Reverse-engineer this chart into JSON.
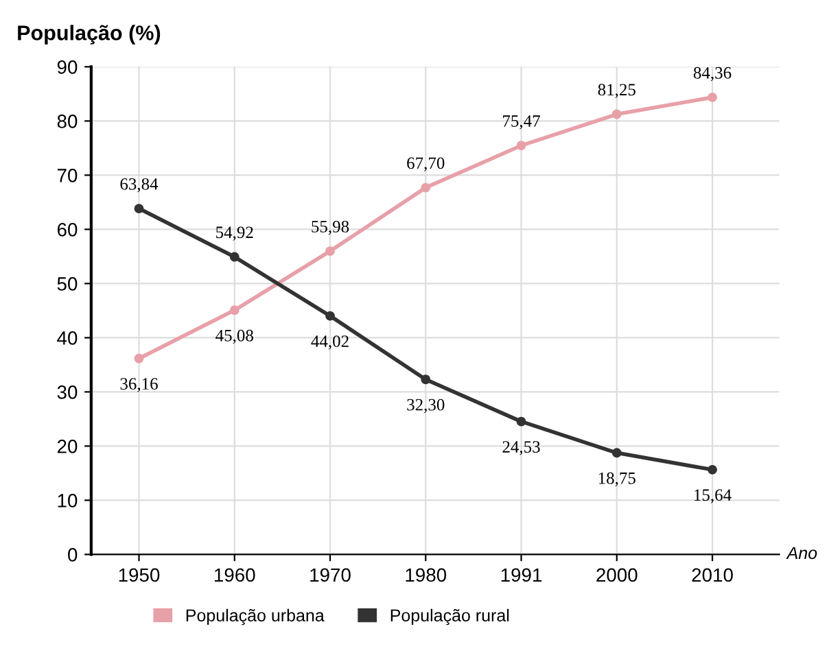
{
  "chart_data": {
    "type": "line",
    "ylabel": "População (%)",
    "xlabel": "Ano",
    "categories": [
      "1950",
      "1960",
      "1970",
      "1980",
      "1991",
      "2000",
      "2010"
    ],
    "series": [
      {
        "name": "População urbana",
        "color": "#e8a0a8",
        "values": [
          36.16,
          45.08,
          55.98,
          67.7,
          75.47,
          81.25,
          84.36
        ],
        "value_labels": [
          "36,16",
          "45,08",
          "55,98",
          "67,70",
          "75,47",
          "81,25",
          "84,36"
        ]
      },
      {
        "name": "População rural",
        "color": "#333333",
        "values": [
          63.84,
          54.92,
          44.02,
          32.3,
          24.53,
          18.75,
          15.64
        ],
        "value_labels": [
          "63,84",
          "54,92",
          "44,02",
          "32,30",
          "24,53",
          "18,75",
          "15,64"
        ]
      }
    ],
    "ylim": [
      0,
      90
    ],
    "yticks": [
      0,
      10,
      20,
      30,
      40,
      50,
      60,
      70,
      80,
      90
    ],
    "grid": true,
    "legend": "bottom",
    "marker": "circle",
    "line_style": "solid"
  }
}
